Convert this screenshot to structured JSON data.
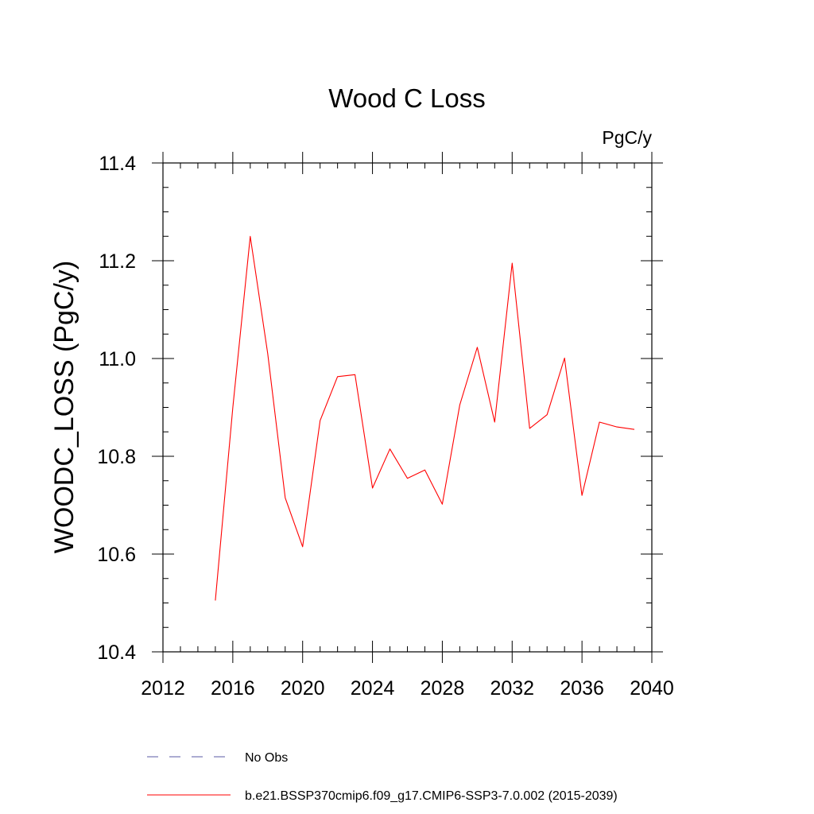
{
  "chart_data": {
    "type": "line",
    "title": "Wood C Loss",
    "units_label": "PgC/y",
    "xlabel": "",
    "ylabel": "WOODC_LOSS  (PgC/y)",
    "xlim": [
      2012,
      2040
    ],
    "ylim": [
      10.4,
      11.4
    ],
    "x_ticks": [
      2012,
      2016,
      2020,
      2024,
      2028,
      2032,
      2036,
      2040
    ],
    "x_tick_labels": [
      "2012",
      "2016",
      "2020",
      "2024",
      "2028",
      "2032",
      "2036",
      "2040"
    ],
    "y_ticks": [
      10.4,
      10.6,
      10.8,
      11.0,
      11.2,
      11.4
    ],
    "y_tick_labels": [
      "10.4",
      "10.6",
      "10.8",
      "11.0",
      "11.2",
      "11.4"
    ],
    "grid": false,
    "legend_position": "bottom",
    "x": [
      2015,
      2016,
      2017,
      2018,
      2019,
      2020,
      2021,
      2022,
      2023,
      2024,
      2025,
      2026,
      2027,
      2028,
      2029,
      2030,
      2031,
      2032,
      2033,
      2034,
      2035,
      2036,
      2037,
      2038,
      2039
    ],
    "series": [
      {
        "name": "b.e21.BSSP370cmip6.f09_g17.CMIP6-SSP3-7.0.002 (2015-2039)",
        "color": "#ff0000",
        "style": "solid",
        "values": [
          10.505,
          10.9,
          11.25,
          11.01,
          10.715,
          10.615,
          10.873,
          10.963,
          10.967,
          10.735,
          10.815,
          10.755,
          10.772,
          10.702,
          10.905,
          11.023,
          10.87,
          11.195,
          10.857,
          10.885,
          11.001,
          10.72,
          10.87,
          10.86,
          10.855
        ]
      }
    ],
    "legend": [
      {
        "label": "No Obs",
        "color": "#5a5aa6",
        "style": "dashed"
      },
      {
        "label": "b.e21.BSSP370cmip6.f09_g17.CMIP6-SSP3-7.0.002 (2015-2039)",
        "color": "#ff0000",
        "style": "solid"
      }
    ]
  }
}
